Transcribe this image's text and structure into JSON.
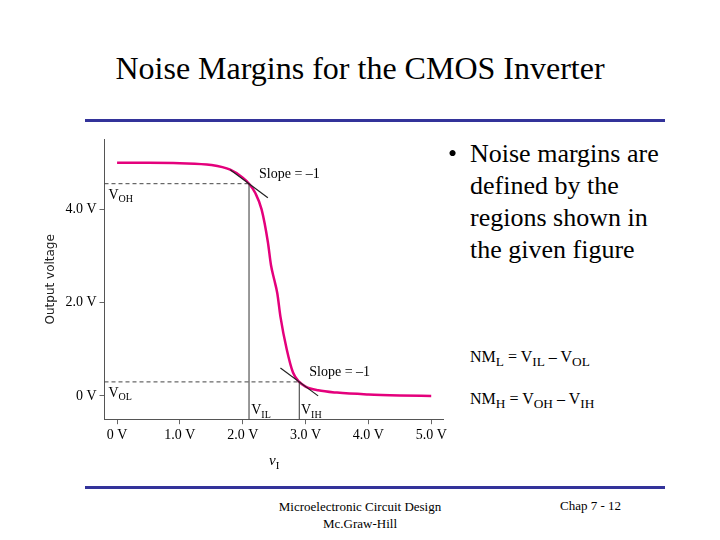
{
  "slide": {
    "title": "Noise Margins for the CMOS Inverter",
    "bullet": "Noise margins are defined by the regions shown in the given figure",
    "equations": [
      [
        {
          "text": "NM",
          "sub": "L"
        },
        {
          "text": " = V",
          "sub": "IL"
        },
        {
          "text": " – V",
          "sub": "OL"
        }
      ],
      [
        {
          "text": "NM",
          "sub": "H"
        },
        {
          "text": " = V",
          "sub": "OH"
        },
        {
          "text": " – V",
          "sub": "IH"
        }
      ]
    ],
    "footer": [
      "Microelectronic Circuit Design",
      "Mc.Graw-Hill"
    ],
    "page": "Chap 7 - 12"
  },
  "chart_data": {
    "type": "line",
    "color": "#e4007c",
    "grid": false,
    "xlabel": [
      {
        "text": "v",
        "sub": "I"
      }
    ],
    "ylabel": "Output voltage",
    "x": [
      0,
      0.5,
      1.0,
      1.5,
      1.8,
      2.0,
      2.1,
      2.2,
      2.3,
      2.4,
      2.45,
      2.5,
      2.55,
      2.6,
      2.7,
      2.8,
      2.9,
      3.0,
      3.2,
      3.5,
      4.0,
      4.5,
      5.0
    ],
    "values": [
      5.0,
      5.0,
      4.99,
      4.95,
      4.85,
      4.68,
      4.55,
      4.35,
      4.0,
      3.3,
      2.8,
      2.5,
      2.2,
      1.7,
      1.0,
      0.5,
      0.3,
      0.2,
      0.12,
      0.07,
      0.03,
      0.01,
      0.0
    ],
    "xlim": [
      -0.2,
      5.2
    ],
    "ylim": [
      -0.5,
      5.5
    ],
    "xticks": [
      {
        "value": 0,
        "label": "0 V"
      },
      {
        "value": 1,
        "label": "1.0 V"
      },
      {
        "value": 2,
        "label": "2.0 V"
      },
      {
        "value": 3,
        "label": "3.0 V"
      },
      {
        "value": 4,
        "label": "4.0 V"
      },
      {
        "value": 5,
        "label": "5.0 V"
      }
    ],
    "yticks": [
      {
        "value": 0,
        "label": "0 V"
      },
      {
        "value": 2,
        "label": "2.0 V"
      },
      {
        "value": 4,
        "label": "4.0 V"
      }
    ],
    "markers": [
      {
        "x": 2.1,
        "y": 4.55,
        "x_label": {
          "text": "V",
          "sub": "IL"
        },
        "y_label": {
          "text": "V",
          "sub": "OH"
        },
        "slope_label": "Slope = –1",
        "slope": -1
      },
      {
        "x": 2.9,
        "y": 0.3,
        "x_label": {
          "text": "V",
          "sub": "IH"
        },
        "y_label": {
          "text": "V",
          "sub": "OL"
        },
        "slope_label": "Slope = –1",
        "slope": -1
      }
    ]
  }
}
